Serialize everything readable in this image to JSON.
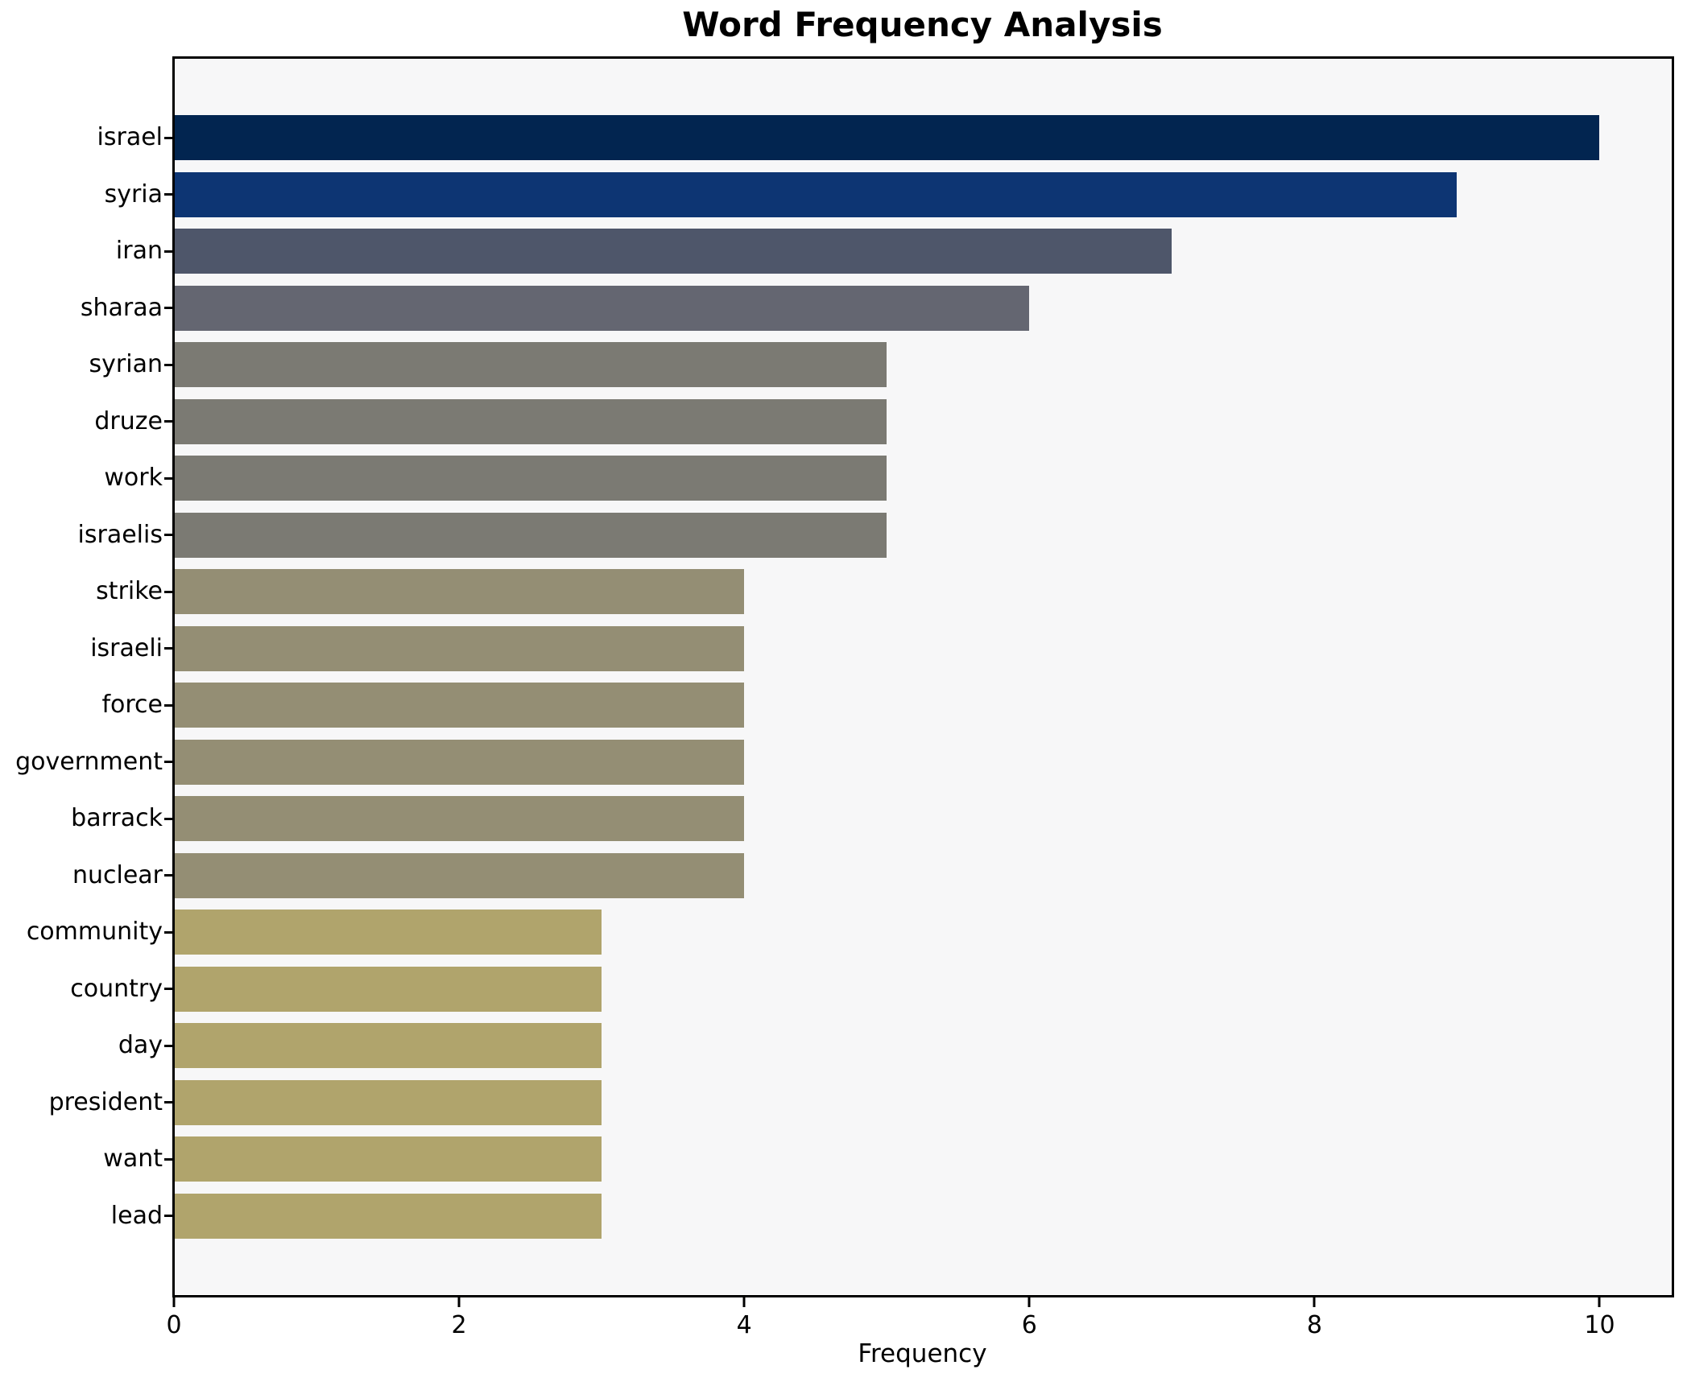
{
  "chart_data": {
    "type": "bar",
    "orientation": "horizontal",
    "title": "Word Frequency Analysis",
    "xlabel": "Frequency",
    "ylabel": "",
    "categories": [
      "israel",
      "syria",
      "iran",
      "sharaa",
      "syrian",
      "druze",
      "work",
      "israelis",
      "strike",
      "israeli",
      "force",
      "government",
      "barrack",
      "nuclear",
      "community",
      "country",
      "day",
      "president",
      "want",
      "lead"
    ],
    "values": [
      10,
      9,
      7,
      6,
      5,
      5,
      5,
      5,
      4,
      4,
      4,
      4,
      4,
      4,
      3,
      3,
      3,
      3,
      3,
      3
    ],
    "bar_colors": [
      "#022550",
      "#0d3573",
      "#4e566a",
      "#646671",
      "#7b7a73",
      "#7b7a73",
      "#7b7a73",
      "#7b7a73",
      "#948e74",
      "#948e74",
      "#948e74",
      "#948e74",
      "#948e74",
      "#948e74",
      "#b0a46c",
      "#b0a46c",
      "#b0a46c",
      "#b0a46c",
      "#b0a46c",
      "#b0a46c"
    ],
    "xticks": [
      0,
      2,
      4,
      6,
      8,
      10
    ],
    "xlim": [
      0,
      10.5
    ],
    "grid": false,
    "legend": null,
    "plot_background": "#f7f7f8",
    "figure_background": "#ffffff",
    "axis_color": "#000000",
    "text_color": "#000000"
  }
}
